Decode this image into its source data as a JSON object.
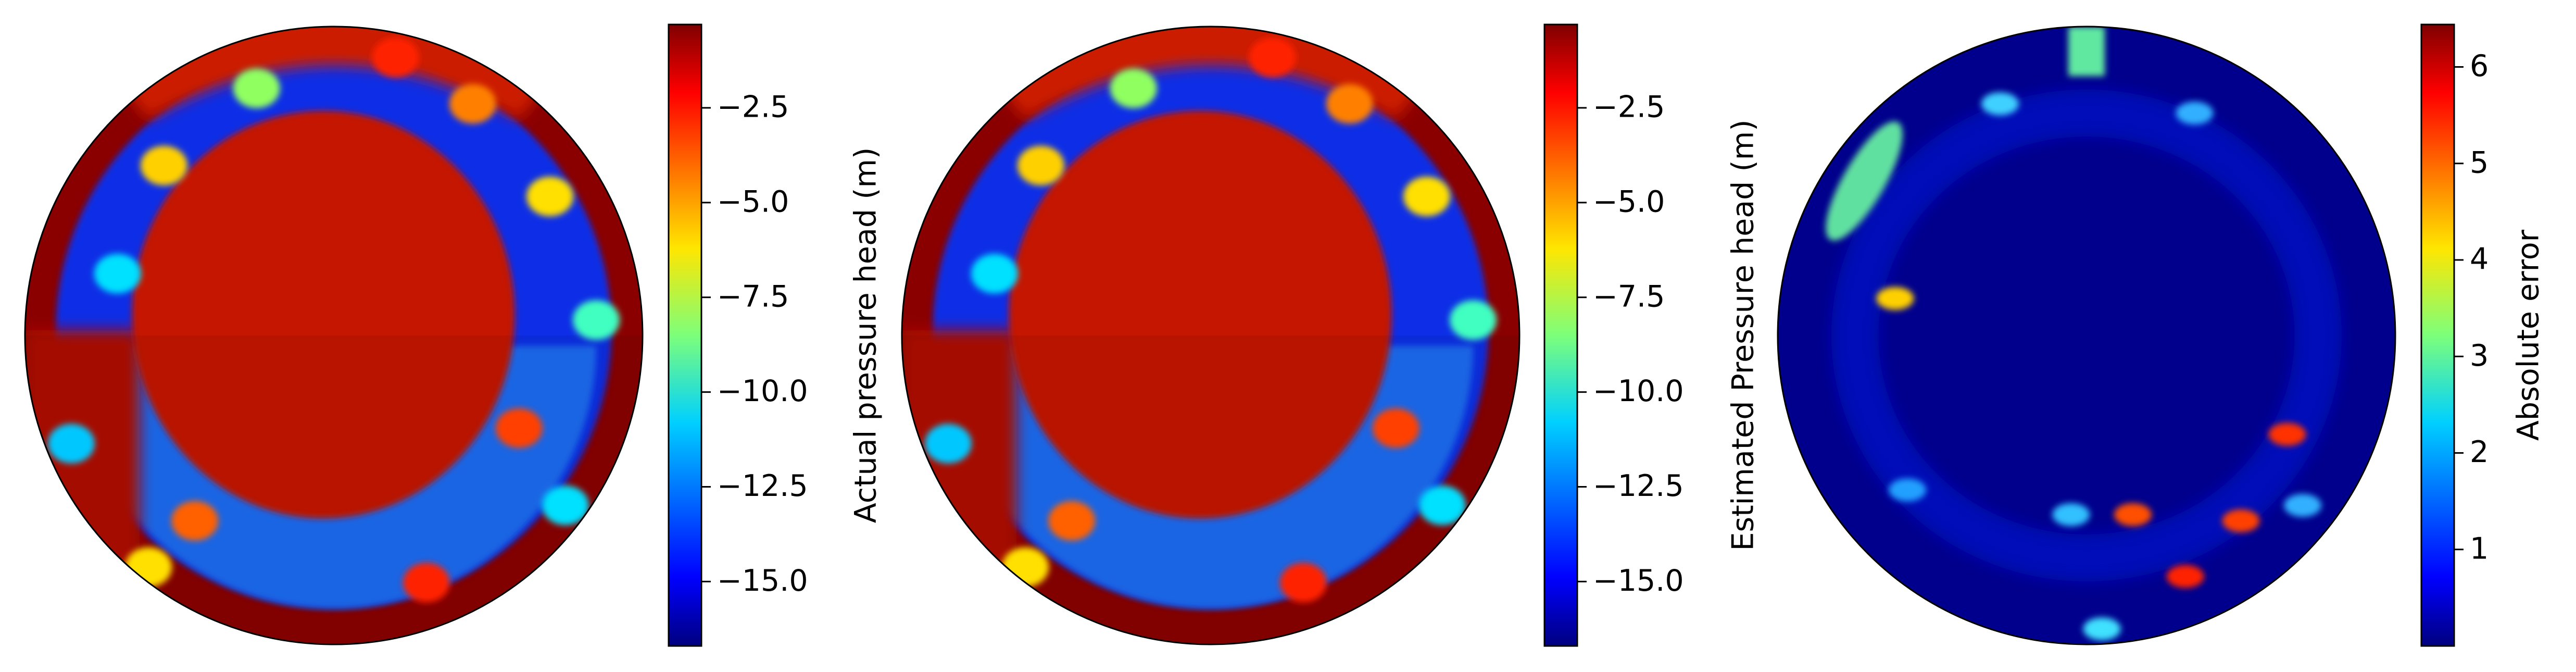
{
  "chart_data": [
    {
      "type": "heatmap",
      "colormap": "jet",
      "colorbar_label": "Actual pressure head (m)",
      "clim": [
        -16.7,
        -0.3
      ],
      "cticks": [
        {
          "value": -15.0,
          "label": "−15.0"
        },
        {
          "value": -12.5,
          "label": "−12.5"
        },
        {
          "value": -10.0,
          "label": "−10.0"
        },
        {
          "value": -7.5,
          "label": "−7.5"
        },
        {
          "value": -5.0,
          "label": "−5.0"
        },
        {
          "value": -2.5,
          "label": "−2.5"
        }
      ]
    },
    {
      "type": "heatmap",
      "colormap": "jet",
      "colorbar_label": "Estimated Pressure head (m)",
      "clim": [
        -16.7,
        -0.3
      ],
      "cticks": [
        {
          "value": -15.0,
          "label": "−15.0"
        },
        {
          "value": -12.5,
          "label": "−12.5"
        },
        {
          "value": -10.0,
          "label": "−10.0"
        },
        {
          "value": -7.5,
          "label": "−7.5"
        },
        {
          "value": -5.0,
          "label": "−5.0"
        },
        {
          "value": -2.5,
          "label": "−2.5"
        }
      ]
    },
    {
      "type": "heatmap",
      "colormap": "jet",
      "colorbar_label": "Absolute error",
      "clim": [
        0,
        6.44
      ],
      "cticks": [
        1,
        2,
        3,
        4,
        5,
        6
      ]
    }
  ]
}
